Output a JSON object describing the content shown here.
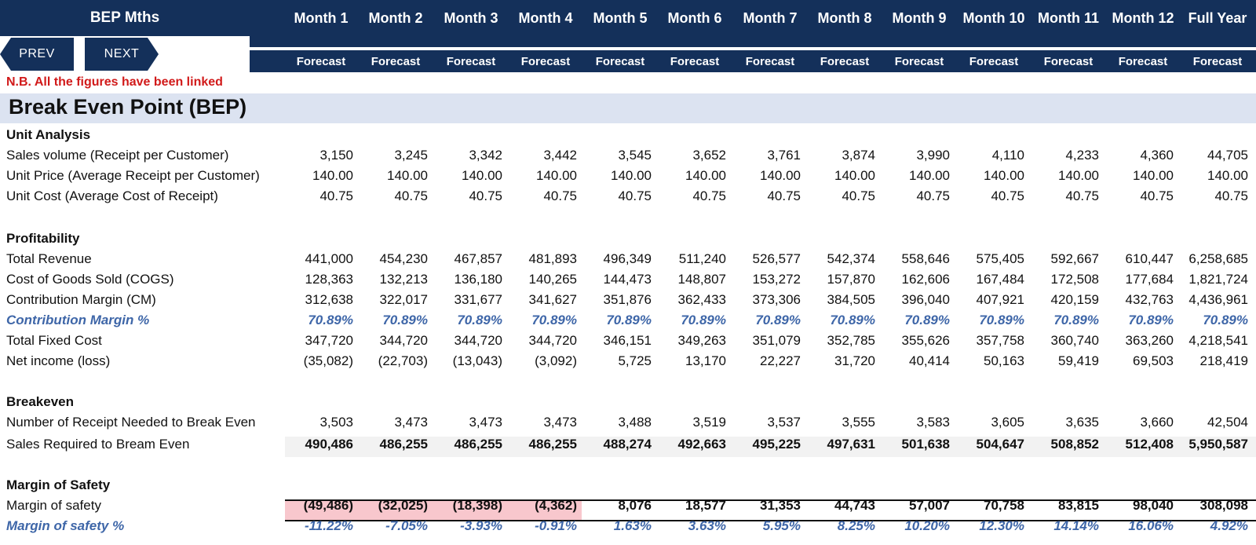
{
  "header": {
    "title": "BEP Mths",
    "months": [
      "Month 1",
      "Month 2",
      "Month 3",
      "Month 4",
      "Month 5",
      "Month 6",
      "Month 7",
      "Month 8",
      "Month 9",
      "Month 10",
      "Month 11",
      "Month 12",
      "Full Year"
    ],
    "forecast": [
      "Forecast",
      "Forecast",
      "Forecast",
      "Forecast",
      "Forecast",
      "Forecast",
      "Forecast",
      "Forecast",
      "Forecast",
      "Forecast",
      "Forecast",
      "Forecast",
      "Forecast"
    ]
  },
  "nav": {
    "prev": "PREV",
    "next": "NEXT"
  },
  "note": "N.B. All the figures have been linked",
  "page_title": "Break Even Point (BEP)",
  "sections": {
    "unit": "Unit Analysis",
    "profit": "Profitability",
    "breakeven": "Breakeven",
    "safety": "Margin of Safety"
  },
  "rows": [
    {
      "label": "Sales volume (Receipt per Customer)",
      "values": [
        "3,150",
        "3,245",
        "3,342",
        "3,442",
        "3,545",
        "3,652",
        "3,761",
        "3,874",
        "3,990",
        "4,110",
        "4,233",
        "4,360",
        "44,705"
      ]
    },
    {
      "label": "Unit Price (Average Receipt per Customer)",
      "values": [
        "140.00",
        "140.00",
        "140.00",
        "140.00",
        "140.00",
        "140.00",
        "140.00",
        "140.00",
        "140.00",
        "140.00",
        "140.00",
        "140.00",
        "140.00"
      ]
    },
    {
      "label": "Unit Cost (Average Cost of Receipt)",
      "values": [
        "40.75",
        "40.75",
        "40.75",
        "40.75",
        "40.75",
        "40.75",
        "40.75",
        "40.75",
        "40.75",
        "40.75",
        "40.75",
        "40.75",
        "40.75"
      ]
    },
    {
      "label": "Total Revenue",
      "values": [
        "441,000",
        "454,230",
        "467,857",
        "481,893",
        "496,349",
        "511,240",
        "526,577",
        "542,374",
        "558,646",
        "575,405",
        "592,667",
        "610,447",
        "6,258,685"
      ]
    },
    {
      "label": "Cost of Goods Sold (COGS)",
      "values": [
        "128,363",
        "132,213",
        "136,180",
        "140,265",
        "144,473",
        "148,807",
        "153,272",
        "157,870",
        "162,606",
        "167,484",
        "172,508",
        "177,684",
        "1,821,724"
      ]
    },
    {
      "label": "Contribution Margin (CM)",
      "values": [
        "312,638",
        "322,017",
        "331,677",
        "341,627",
        "351,876",
        "362,433",
        "373,306",
        "384,505",
        "396,040",
        "407,921",
        "420,159",
        "432,763",
        "4,436,961"
      ]
    },
    {
      "label": "Contribution Margin %",
      "values": [
        "70.89%",
        "70.89%",
        "70.89%",
        "70.89%",
        "70.89%",
        "70.89%",
        "70.89%",
        "70.89%",
        "70.89%",
        "70.89%",
        "70.89%",
        "70.89%",
        "70.89%"
      ]
    },
    {
      "label": "Total Fixed Cost",
      "values": [
        "347,720",
        "344,720",
        "344,720",
        "344,720",
        "346,151",
        "349,263",
        "351,079",
        "352,785",
        "355,626",
        "357,758",
        "360,740",
        "363,260",
        "4,218,541"
      ]
    },
    {
      "label": "Net income (loss)",
      "values": [
        "(35,082)",
        "(22,703)",
        "(13,043)",
        "(3,092)",
        "5,725",
        "13,170",
        "22,227",
        "31,720",
        "40,414",
        "50,163",
        "59,419",
        "69,503",
        "218,419"
      ]
    },
    {
      "label": "Number of Receipt Needed to Break Even",
      "values": [
        "3,503",
        "3,473",
        "3,473",
        "3,473",
        "3,488",
        "3,519",
        "3,537",
        "3,555",
        "3,583",
        "3,605",
        "3,635",
        "3,660",
        "42,504"
      ]
    },
    {
      "label": "Sales Required to Bream Even",
      "values": [
        "490,486",
        "486,255",
        "486,255",
        "486,255",
        "488,274",
        "492,663",
        "495,225",
        "497,631",
        "501,638",
        "504,647",
        "508,852",
        "512,408",
        "5,950,587"
      ]
    },
    {
      "label": "Margin of safety",
      "values": [
        "(49,486)",
        "(32,025)",
        "(18,398)",
        "(4,362)",
        "8,076",
        "18,577",
        "31,353",
        "44,743",
        "57,007",
        "70,758",
        "83,815",
        "98,040",
        "308,098"
      ]
    },
    {
      "label": "Margin of safety %",
      "values": [
        "-11.22%",
        "-7.05%",
        "-3.93%",
        "-0.91%",
        "1.63%",
        "3.63%",
        "5.95%",
        "8.25%",
        "10.20%",
        "12.30%",
        "14.14%",
        "16.06%",
        "4.92%"
      ]
    }
  ]
}
